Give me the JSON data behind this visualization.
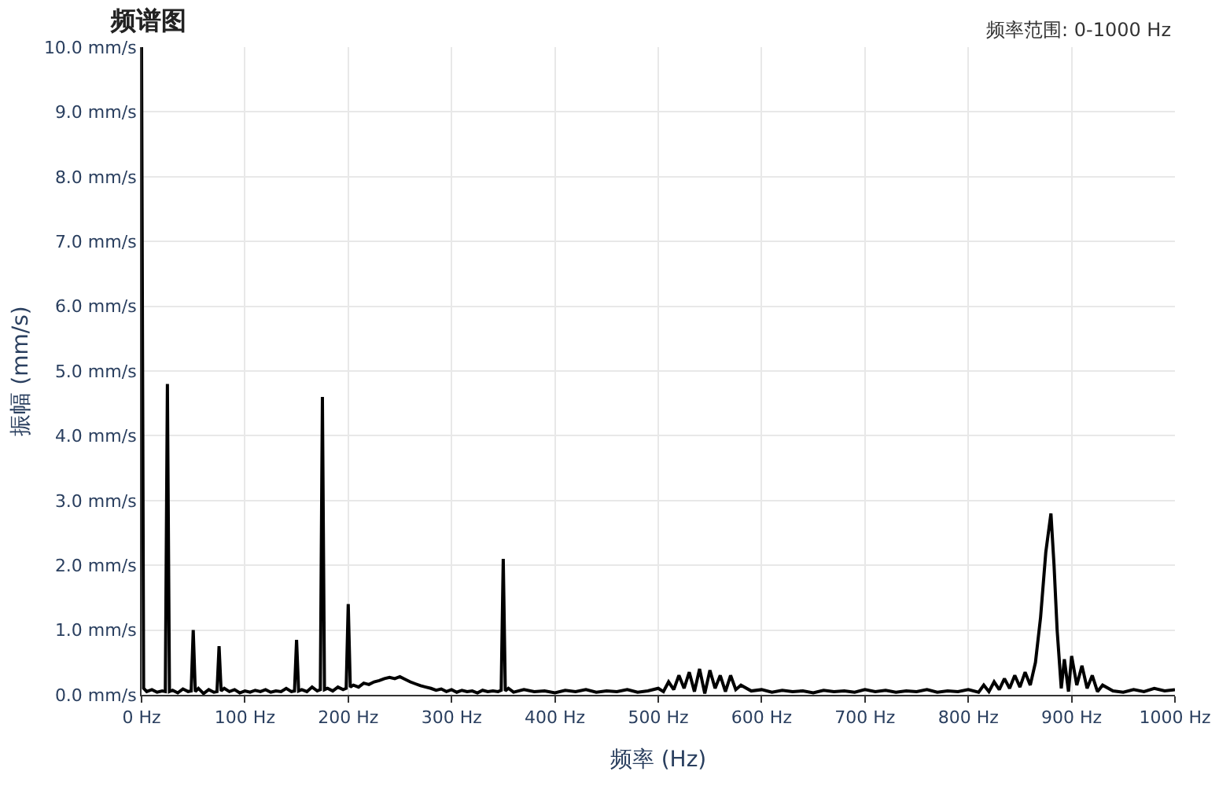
{
  "chart_data": {
    "type": "line",
    "title": "频谱图",
    "annotations": [
      "频率范围: 0-1000 Hz"
    ],
    "xlabel": "频率 (Hz)",
    "ylabel": "振幅 (mm/s)",
    "x": [
      0,
      2,
      5,
      10,
      15,
      20,
      23,
      25,
      27,
      30,
      35,
      40,
      45,
      48,
      50,
      52,
      55,
      60,
      65,
      70,
      73,
      75,
      77,
      80,
      85,
      90,
      95,
      100,
      105,
      110,
      115,
      120,
      125,
      130,
      135,
      140,
      145,
      148,
      150,
      152,
      155,
      160,
      165,
      170,
      173,
      175,
      177,
      180,
      185,
      190,
      195,
      198,
      200,
      202,
      205,
      210,
      215,
      220,
      225,
      230,
      235,
      240,
      245,
      250,
      255,
      260,
      265,
      270,
      275,
      280,
      285,
      290,
      295,
      300,
      305,
      310,
      315,
      320,
      325,
      330,
      335,
      340,
      345,
      348,
      350,
      352,
      355,
      360,
      370,
      380,
      390,
      400,
      410,
      420,
      430,
      440,
      450,
      460,
      470,
      480,
      490,
      500,
      505,
      510,
      515,
      520,
      525,
      530,
      535,
      540,
      545,
      550,
      555,
      560,
      565,
      570,
      575,
      580,
      590,
      600,
      610,
      620,
      630,
      640,
      650,
      660,
      670,
      680,
      690,
      700,
      710,
      720,
      730,
      740,
      750,
      760,
      770,
      780,
      790,
      800,
      810,
      815,
      820,
      825,
      830,
      835,
      840,
      845,
      850,
      855,
      860,
      865,
      870,
      875,
      880,
      883,
      886,
      890,
      893,
      897,
      900,
      905,
      910,
      915,
      920,
      925,
      930,
      940,
      950,
      960,
      970,
      980,
      990,
      1000
    ],
    "series": [
      {
        "color": "#000000",
        "values": [
          10.0,
          0.1,
          0.05,
          0.08,
          0.04,
          0.06,
          0.05,
          4.8,
          0.05,
          0.07,
          0.03,
          0.09,
          0.05,
          0.06,
          1.0,
          0.05,
          0.1,
          0.02,
          0.08,
          0.04,
          0.05,
          0.75,
          0.06,
          0.1,
          0.05,
          0.08,
          0.03,
          0.06,
          0.04,
          0.07,
          0.05,
          0.08,
          0.04,
          0.06,
          0.05,
          0.1,
          0.05,
          0.06,
          0.85,
          0.06,
          0.08,
          0.05,
          0.12,
          0.06,
          0.08,
          4.6,
          0.08,
          0.1,
          0.06,
          0.12,
          0.08,
          0.1,
          1.4,
          0.12,
          0.15,
          0.12,
          0.18,
          0.16,
          0.2,
          0.22,
          0.25,
          0.27,
          0.25,
          0.28,
          0.24,
          0.2,
          0.17,
          0.14,
          0.12,
          0.1,
          0.07,
          0.09,
          0.05,
          0.08,
          0.04,
          0.07,
          0.05,
          0.06,
          0.03,
          0.07,
          0.05,
          0.06,
          0.05,
          0.07,
          2.1,
          0.06,
          0.1,
          0.04,
          0.08,
          0.05,
          0.06,
          0.03,
          0.07,
          0.05,
          0.08,
          0.04,
          0.06,
          0.05,
          0.08,
          0.04,
          0.06,
          0.1,
          0.05,
          0.2,
          0.08,
          0.3,
          0.1,
          0.35,
          0.05,
          0.4,
          0.02,
          0.38,
          0.1,
          0.3,
          0.05,
          0.3,
          0.08,
          0.15,
          0.06,
          0.08,
          0.04,
          0.07,
          0.05,
          0.06,
          0.03,
          0.07,
          0.05,
          0.06,
          0.04,
          0.08,
          0.05,
          0.07,
          0.04,
          0.06,
          0.05,
          0.08,
          0.04,
          0.06,
          0.05,
          0.08,
          0.04,
          0.15,
          0.05,
          0.2,
          0.08,
          0.25,
          0.1,
          0.3,
          0.12,
          0.35,
          0.15,
          0.5,
          1.2,
          2.2,
          2.8,
          2.0,
          1.0,
          0.1,
          0.55,
          0.05,
          0.6,
          0.15,
          0.45,
          0.1,
          0.3,
          0.05,
          0.15,
          0.06,
          0.04,
          0.08,
          0.05,
          0.1,
          0.06,
          0.08
        ]
      }
    ],
    "xlim": [
      0,
      1000
    ],
    "ylim": [
      0,
      10
    ],
    "xticks": [
      {
        "value": 0,
        "label": "0 Hz"
      },
      {
        "value": 100,
        "label": "100 Hz"
      },
      {
        "value": 200,
        "label": "200 Hz"
      },
      {
        "value": 300,
        "label": "300 Hz"
      },
      {
        "value": 400,
        "label": "400 Hz"
      },
      {
        "value": 500,
        "label": "500 Hz"
      },
      {
        "value": 600,
        "label": "600 Hz"
      },
      {
        "value": 700,
        "label": "700 Hz"
      },
      {
        "value": 800,
        "label": "800 Hz"
      },
      {
        "value": 900,
        "label": "900 Hz"
      },
      {
        "value": 1000,
        "label": "1000 Hz"
      }
    ],
    "yticks": [
      {
        "value": 0,
        "label": "0.0 mm/s"
      },
      {
        "value": 1,
        "label": "1.0 mm/s"
      },
      {
        "value": 2,
        "label": "2.0 mm/s"
      },
      {
        "value": 3,
        "label": "3.0 mm/s"
      },
      {
        "value": 4,
        "label": "4.0 mm/s"
      },
      {
        "value": 5,
        "label": "5.0 mm/s"
      },
      {
        "value": 6,
        "label": "6.0 mm/s"
      },
      {
        "value": 7,
        "label": "7.0 mm/s"
      },
      {
        "value": 8,
        "label": "8.0 mm/s"
      },
      {
        "value": 9,
        "label": "9.0 mm/s"
      },
      {
        "value": 10,
        "label": "10.0 mm/s"
      }
    ],
    "grid": true,
    "marker": "none",
    "line_style": "solid"
  }
}
